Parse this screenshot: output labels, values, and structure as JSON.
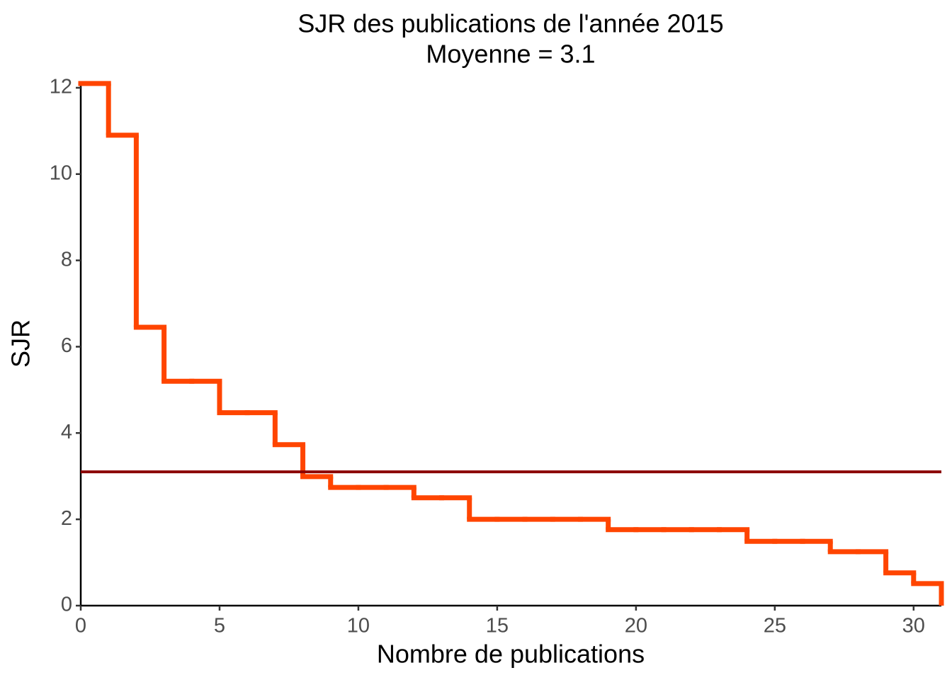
{
  "chart_data": {
    "type": "step",
    "title": "SJR des publications de l'année 2015",
    "subtitle": "Moyenne = 3.1",
    "x_label": "Nombre de publications",
    "y_label": "SJR",
    "x": [
      0,
      1,
      2,
      3,
      4,
      5,
      6,
      7,
      8,
      9,
      10,
      11,
      12,
      13,
      14,
      15,
      16,
      17,
      18,
      19,
      20,
      21,
      22,
      23,
      24,
      25,
      26,
      27,
      28,
      29,
      30,
      31
    ],
    "values": [
      12.1,
      10.9,
      6.45,
      5.2,
      5.2,
      4.47,
      4.47,
      3.73,
      2.99,
      2.74,
      2.74,
      2.74,
      2.5,
      2.5,
      2.0,
      2.0,
      2.0,
      2.0,
      2.0,
      1.76,
      1.76,
      1.76,
      1.76,
      1.76,
      1.49,
      1.49,
      1.49,
      1.25,
      1.25,
      0.76,
      0.51,
      0
    ],
    "color": "#ff4500",
    "hline": 3.1,
    "hline_color": "#8b0000",
    "xlim": [
      0,
      31
    ],
    "ylim": [
      0,
      12.13
    ],
    "xticks": [
      0,
      5,
      10,
      15,
      20,
      25,
      30
    ],
    "yticks": [
      0,
      2,
      4,
      6,
      8,
      10,
      12
    ],
    "grid": false
  }
}
